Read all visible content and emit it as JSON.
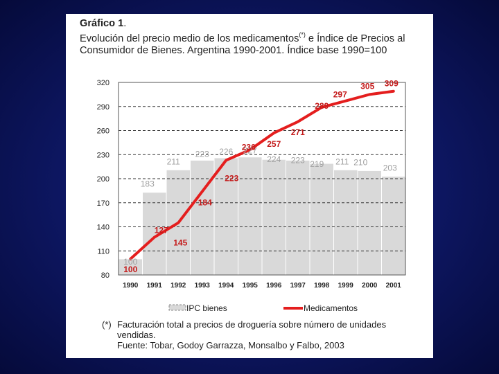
{
  "slide": {
    "title_head": "Gráfico 1",
    "title_head_period": ".",
    "title_line1": "Evolución del precio medio de los medicamentos",
    "title_mark": "(*)",
    "title_line1_tail": " e Índice de Precios al",
    "title_line2": "Consumidor de Bienes. Argentina 1990-2001.  Índice base 1990=100",
    "footnote_mark": "(*)",
    "footnote_text": "Facturación total a precios de droguería sobre número de unidades vendidas.",
    "source_text": "Fuente: Tobar, Godoy Garrazza, Monsalbo y Falbo, 2003"
  },
  "colors": {
    "background": "#0d1660",
    "bars": "#d9d9d9",
    "bar_labels": "#a0a0a0",
    "line": "#e41e1e",
    "line_labels": "#c41a1a"
  },
  "chart_data": {
    "type": "bar",
    "categories": [
      "1990",
      "1991",
      "1992",
      "1993",
      "1994",
      "1995",
      "1996",
      "1997",
      "1998",
      "1999",
      "2000",
      "2001"
    ],
    "ylim": [
      80,
      320
    ],
    "yticks": [
      80,
      110,
      140,
      170,
      200,
      230,
      260,
      290,
      320
    ],
    "ytick_labels": [
      "80",
      "110",
      "140",
      "170",
      "200",
      "230",
      "260",
      "290",
      "320"
    ],
    "grid": "horizontal dashed",
    "legend_position": "bottom",
    "series": [
      {
        "name": "IPC bienes",
        "type": "bar",
        "values": [
          100,
          183,
          211,
          223,
          226,
          227,
          224,
          223,
          219,
          211,
          210,
          203
        ],
        "labels": [
          "100",
          "183",
          "211",
          "223",
          "226",
          "227",
          "224",
          "223",
          "219",
          "211",
          "210",
          "203"
        ]
      },
      {
        "name": "Medicamentos",
        "type": "line",
        "values": [
          100,
          127,
          145,
          184,
          223,
          236,
          257,
          271,
          289,
          297,
          305,
          309
        ],
        "labels": [
          "100",
          "127",
          "145",
          "184",
          "223",
          "236",
          "257",
          "271",
          "289",
          "297",
          "305",
          "309"
        ]
      }
    ]
  }
}
